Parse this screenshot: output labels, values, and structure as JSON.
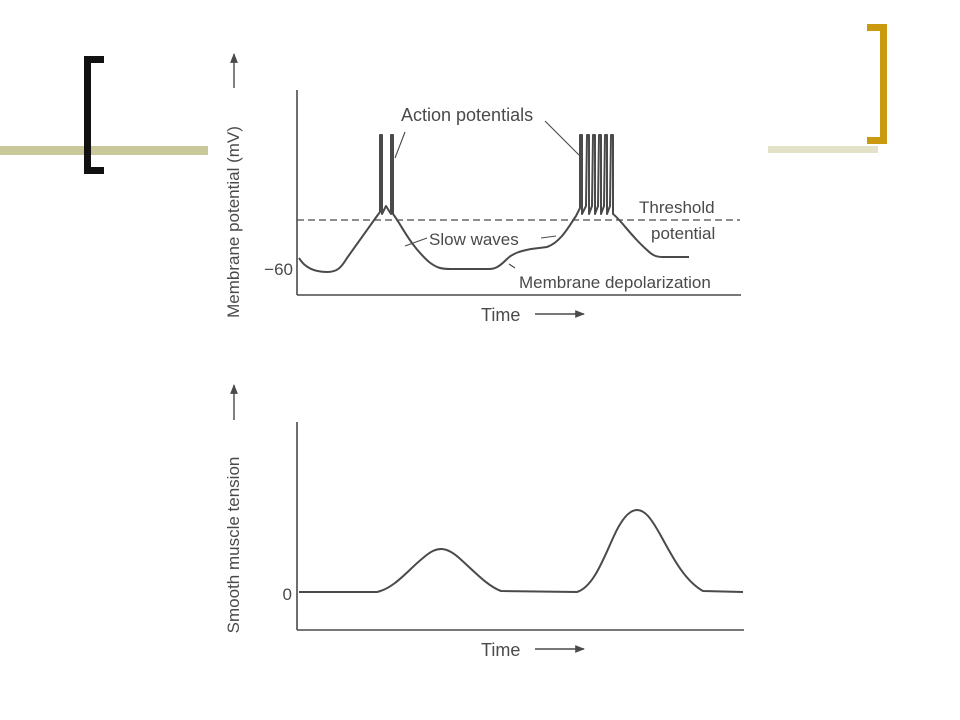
{
  "slide": {
    "accent_colors": {
      "olive_band": "#c9c89a",
      "left_bracket": "#111111",
      "right_bracket": "#c99a10"
    }
  },
  "figure": {
    "top_panel": {
      "y_axis_label": "Membrane potential (mV)",
      "x_axis_label": "Time",
      "tick_label": "−60",
      "annotations": {
        "action_potentials": "Action potentials",
        "threshold_line1": "Threshold",
        "threshold_line2": "potential",
        "slow_waves": "Slow waves",
        "membrane_depolarization": "Membrane depolarization"
      }
    },
    "bottom_panel": {
      "y_axis_label": "Smooth muscle tension",
      "x_axis_label": "Time",
      "tick_label": "0"
    },
    "ink_color": "#4a4a4a"
  }
}
